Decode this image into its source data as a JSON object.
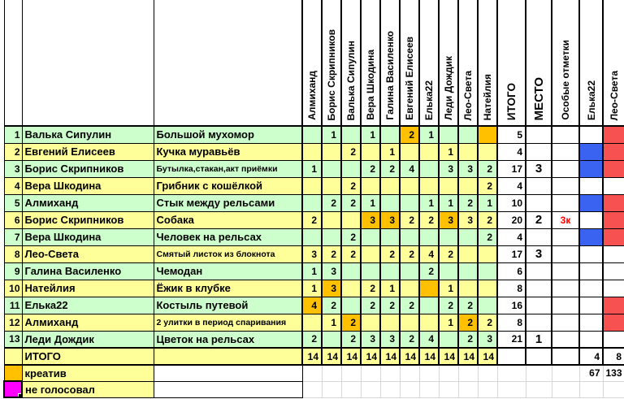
{
  "sheet": {
    "voters": [
      "Алмиханд",
      "Борис Скрипников",
      "Валька Сипулин",
      "Вера Шкодина",
      "Галина Василенко",
      "Евгений Елисеев",
      "Елька22",
      "Леди Дождик",
      "Лео-Света",
      "Натейлия"
    ],
    "total_header": "ИТОГО",
    "place_header": "МЕСТО",
    "special_header": "Особые отметки",
    "extra_headers": [
      "Елька22",
      "Лео-Света"
    ],
    "rows": [
      {
        "num": "1",
        "author": "Валька Сипулин",
        "title": "Большой мухомор",
        "votes": [
          "",
          "1",
          "",
          "1",
          "",
          "2",
          "1",
          "",
          "",
          ""
        ],
        "orange": [
          5,
          9
        ],
        "total": "5",
        "place": "",
        "special": "",
        "elka": "",
        "leo": "red"
      },
      {
        "num": "2",
        "author": "Евгений Елисеев",
        "title": "Кучка муравьёв",
        "votes": [
          "",
          "",
          "2",
          "",
          "1",
          "",
          "",
          "1",
          "",
          ""
        ],
        "orange": [],
        "total": "4",
        "place": "",
        "special": "",
        "elka": "blue",
        "leo": "red"
      },
      {
        "num": "3",
        "author": "Борис Скрипников",
        "title": "Бутылка,стакан,акт приёмки",
        "votes": [
          "1",
          "",
          "",
          "2",
          "2",
          "4",
          "",
          "3",
          "3",
          "2"
        ],
        "orange": [],
        "total": "17",
        "place": "3",
        "special": "",
        "elka": "blue",
        "leo": "red"
      },
      {
        "num": "4",
        "author": "Вера Шкодина",
        "title": "Грибник с кошёлкой",
        "votes": [
          "",
          "",
          "2",
          "",
          "",
          "",
          "",
          "",
          "",
          "2"
        ],
        "orange": [],
        "total": "4",
        "place": "",
        "special": "",
        "elka": "",
        "leo": ""
      },
      {
        "num": "5",
        "author": "Алмиханд",
        "title": "Стык между рельсами",
        "votes": [
          "",
          "2",
          "2",
          "1",
          "",
          "",
          "1",
          "1",
          "2",
          "1"
        ],
        "orange": [],
        "total": "10",
        "place": "",
        "special": "",
        "elka": "blue",
        "leo": "red"
      },
      {
        "num": "6",
        "author": "Борис Скрипников",
        "title": "Собака",
        "votes": [
          "2",
          "",
          "",
          "3",
          "3",
          "2",
          "2",
          "3",
          "3",
          "2"
        ],
        "orange": [
          3,
          4,
          7
        ],
        "total": "20",
        "place": "2",
        "special": "3к",
        "elka": "",
        "leo": "red"
      },
      {
        "num": "7",
        "author": "Вера Шкодина",
        "title": "Человек на рельсах",
        "votes": [
          "",
          "",
          "2",
          "",
          "",
          "",
          "",
          "",
          "",
          "2"
        ],
        "orange": [],
        "total": "4",
        "place": "",
        "special": "",
        "elka": "blue",
        "leo": "red"
      },
      {
        "num": "8",
        "author": "Лео-Света",
        "title": "Смятый листок из блокнота",
        "votes": [
          "3",
          "2",
          "2",
          "",
          "2",
          "2",
          "4",
          "2",
          "",
          ""
        ],
        "orange": [],
        "total": "17",
        "place": "3",
        "special": "",
        "elka": "",
        "leo": ""
      },
      {
        "num": "9",
        "author": "Галина Василенко",
        "title": "Чемодан",
        "votes": [
          "1",
          "3",
          "",
          "",
          "",
          "",
          "2",
          "",
          "",
          ""
        ],
        "orange": [],
        "total": "6",
        "place": "",
        "special": "",
        "elka": "",
        "leo": ""
      },
      {
        "num": "10",
        "author": "Натейлия",
        "title": "Ёжик в клубке",
        "votes": [
          "1",
          "3",
          "",
          "2",
          "1",
          "",
          "",
          "1",
          "",
          ""
        ],
        "orange": [
          1,
          6
        ],
        "total": "8",
        "place": "",
        "special": "",
        "elka": "",
        "leo": ""
      },
      {
        "num": "11",
        "author": "Елька22",
        "title": "Костыль путевой",
        "votes": [
          "4",
          "2",
          "",
          "2",
          "2",
          "2",
          "",
          "2",
          "2",
          ""
        ],
        "orange": [
          0
        ],
        "total": "16",
        "place": "",
        "special": "",
        "elka": "",
        "leo": "red"
      },
      {
        "num": "12",
        "author": "Алмиханд",
        "title": "2 улитки в период спаривания",
        "votes": [
          "",
          "1",
          "2",
          "",
          "",
          "",
          "",
          "1",
          "2",
          "2"
        ],
        "orange": [
          2,
          8
        ],
        "total": "8",
        "place": "",
        "special": "",
        "elka": "",
        "leo": "red"
      },
      {
        "num": "13",
        "author": "Леди Дождик",
        "title": "Цветок на рельсах",
        "votes": [
          "2",
          "",
          "2",
          "3",
          "3",
          "2",
          "4",
          "",
          "2",
          "3"
        ],
        "orange": [],
        "total": "21",
        "place": "1",
        "special": "",
        "elka": "",
        "leo": ""
      }
    ],
    "totals_row": {
      "label": "ИТОГО",
      "votes": [
        "14",
        "14",
        "14",
        "14",
        "14",
        "14",
        "14",
        "14",
        "14",
        "14"
      ],
      "extra": [
        "4",
        "8"
      ]
    },
    "creative_row": {
      "label": "креатив",
      "extra": [
        "67",
        "133"
      ]
    },
    "not_voted_row": {
      "label": "не голосовал"
    },
    "colors": {
      "row_green": "#CCFFCC",
      "row_yellow": "#FFFF99",
      "creative_orange": "#FFC000",
      "mark_red": "#F85152",
      "mark_blue": "#3A63F1",
      "not_voted_magenta": "#FF00FF",
      "special_text_red": "#FF0000"
    }
  }
}
